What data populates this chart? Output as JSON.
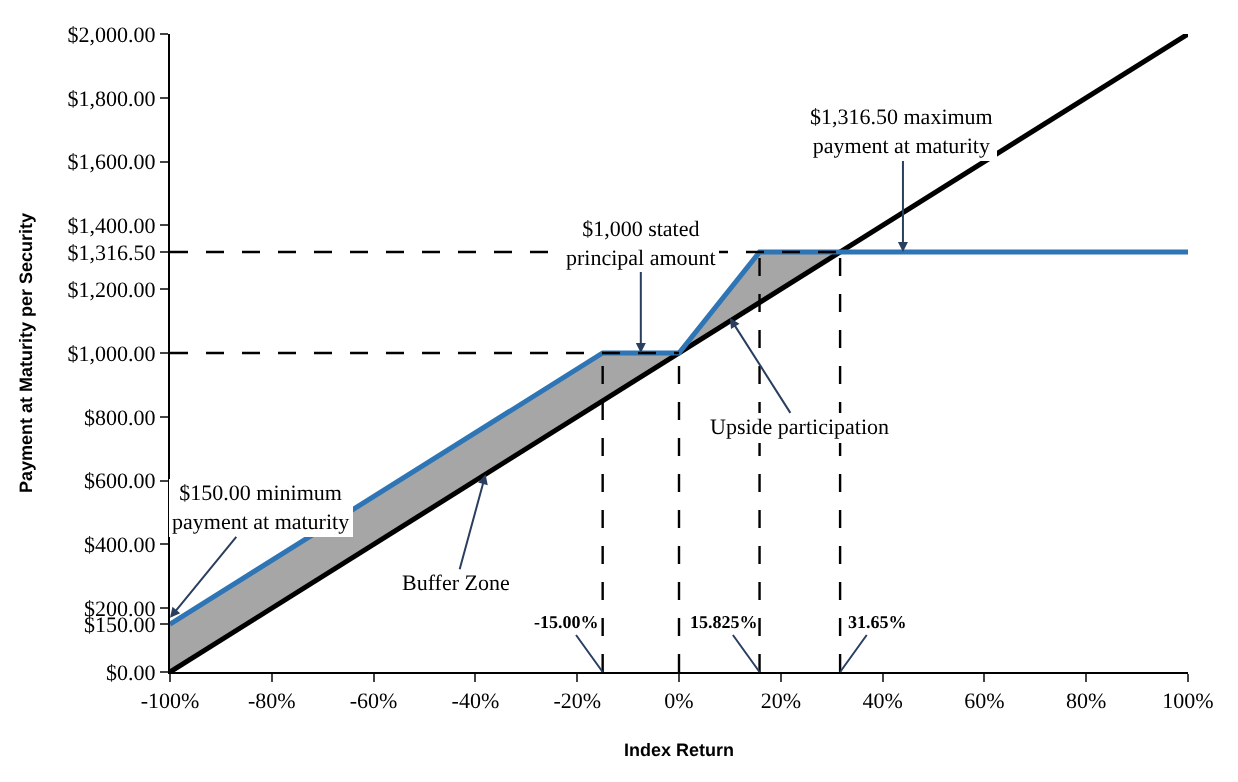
{
  "chart_data": {
    "type": "line",
    "xlabel": "Index Return",
    "ylabel": "Payment at Maturity per Security",
    "xlim": [
      -100,
      100
    ],
    "ylim": [
      0,
      2000
    ],
    "xticks": [
      {
        "value": -100,
        "label": "-100%"
      },
      {
        "value": -80,
        "label": "-80%"
      },
      {
        "value": -60,
        "label": "-60%"
      },
      {
        "value": -40,
        "label": "-40%"
      },
      {
        "value": -20,
        "label": "-20%"
      },
      {
        "value": 0,
        "label": "0%"
      },
      {
        "value": 20,
        "label": "20%"
      },
      {
        "value": 40,
        "label": "40%"
      },
      {
        "value": 60,
        "label": "60%"
      },
      {
        "value": 80,
        "label": "80%"
      },
      {
        "value": 100,
        "label": "100%"
      }
    ],
    "yticks": [
      {
        "value": 0,
        "label": "$0.00"
      },
      {
        "value": 150,
        "label": "$150.00"
      },
      {
        "value": 200,
        "label": "$200.00"
      },
      {
        "value": 400,
        "label": "$400.00"
      },
      {
        "value": 600,
        "label": "$600.00"
      },
      {
        "value": 800,
        "label": "$800.00"
      },
      {
        "value": 1000,
        "label": "$1,000.00"
      },
      {
        "value": 1200,
        "label": "$1,200.00"
      },
      {
        "value": 1316.5,
        "label": "$1,316.50"
      },
      {
        "value": 1400,
        "label": "$1,400.00"
      },
      {
        "value": 1600,
        "label": "$1,600.00"
      },
      {
        "value": 1800,
        "label": "$1,800.00"
      },
      {
        "value": 2000,
        "label": "$2,000.00"
      }
    ],
    "series": [
      {
        "color": "#000000",
        "x": [
          -100,
          100
        ],
        "values": [
          0,
          2000
        ]
      },
      {
        "color": "#2e75b6",
        "x": [
          -100,
          -15,
          0,
          15.825,
          31.65,
          100
        ],
        "values": [
          150,
          1000,
          1000,
          1316.5,
          1316.5,
          1316.5
        ],
        "lower": [
          0,
          850,
          1000,
          1158.25,
          1316.5,
          null
        ],
        "upper": [
          150,
          1000,
          1000,
          1316.5,
          1316.5,
          null
        ]
      }
    ],
    "ref_lines": [
      {
        "axis": "y",
        "value": 1000,
        "label": null,
        "line_style": "dashed"
      },
      {
        "axis": "y",
        "value": 1316.5,
        "label": null,
        "line_style": "dashed"
      },
      {
        "axis": "x",
        "value": -15,
        "label": "-15.00%",
        "line_style": "dashed"
      },
      {
        "axis": "x",
        "value": 0,
        "label": null,
        "line_style": "dashed"
      },
      {
        "axis": "x",
        "value": 15.825,
        "label": "15.825%",
        "line_style": "dashed"
      },
      {
        "axis": "x",
        "value": 31.65,
        "label": "31.65%",
        "line_style": "dashed"
      }
    ],
    "annotations": [
      {
        "text": "$1,000 stated\nprincipal amount",
        "x": -7.5,
        "y": 1000
      },
      {
        "text": "$1,316.50 maximum\npayment at maturity",
        "x": 44,
        "y": 1316.5
      },
      {
        "text": "$150.00 minimum\npayment at maturity",
        "x": -100,
        "y": 170
      },
      {
        "text": "Buffer Zone",
        "x": -38,
        "y": 620
      },
      {
        "text": "Upside participation",
        "x": 10,
        "y": 1110
      }
    ],
    "marker": "none",
    "line_style": "solid"
  }
}
